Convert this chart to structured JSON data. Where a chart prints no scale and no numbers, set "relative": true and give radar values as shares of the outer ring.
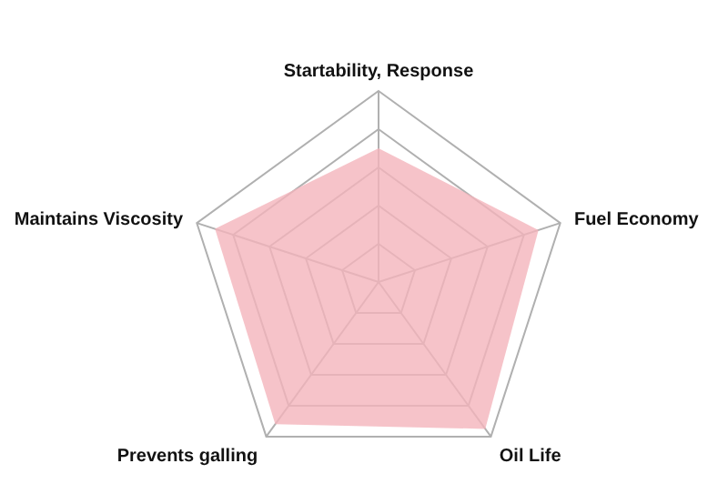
{
  "chart_data": {
    "type": "radar",
    "relative": true,
    "grid": true,
    "categories": [
      "Startability, Response",
      "Fuel Economy",
      "Oil Life",
      "Prevents galling",
      "Maintains Viscosity"
    ],
    "series": [
      {
        "color": "#f4b4bb",
        "values": [
          0.7,
          0.88,
          0.95,
          0.92,
          0.9
        ]
      }
    ]
  }
}
